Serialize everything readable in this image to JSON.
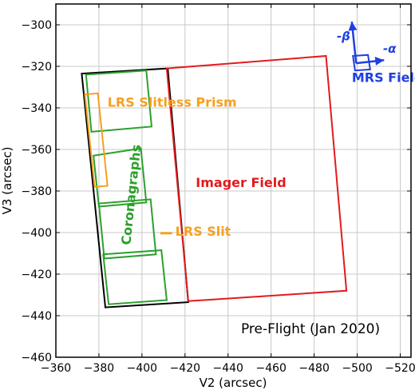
{
  "chart_data": {
    "type": "line",
    "xlabel": "V2 (arcsec)",
    "ylabel": "V3 (arcsec)",
    "xlim": [
      -360,
      -525
    ],
    "ylim": [
      -460,
      -290
    ],
    "x_ticks": [
      -360,
      -380,
      -400,
      -420,
      -440,
      -460,
      -480,
      -500,
      -520
    ],
    "y_ticks": [
      -300,
      -320,
      -340,
      -360,
      -380,
      -400,
      -420,
      -440,
      -460
    ],
    "x_tick_labels": [
      "−360",
      "−380",
      "−400",
      "−420",
      "−440",
      "−460",
      "−480",
      "−500",
      "−520"
    ],
    "y_tick_labels": [
      "−300",
      "−320",
      "−340",
      "−360",
      "−380",
      "−400",
      "−420",
      "−440",
      "−460"
    ],
    "grid": true,
    "colors": {
      "black": "#000000",
      "red": "#e31a1c",
      "green": "#2ca02c",
      "orange": "#f5a020",
      "blue": "#1f3fe0",
      "grid": "#c8c8c8"
    },
    "shapes": [
      {
        "name": "outer-outline",
        "color": "#000000",
        "points": [
          [
            -372,
            -323.5
          ],
          [
            -412,
            -321
          ],
          [
            -421.5,
            -433.5
          ],
          [
            -383,
            -436
          ]
        ]
      },
      {
        "name": "imager-field",
        "color": "#e31a1c",
        "points": [
          [
            -411.5,
            -321
          ],
          [
            -485.5,
            -315
          ],
          [
            -495,
            -428
          ],
          [
            -421.5,
            -433
          ]
        ]
      },
      {
        "name": "coronagraph-1",
        "color": "#2ca02c",
        "points": [
          [
            -374,
            -324
          ],
          [
            -402,
            -322
          ],
          [
            -404.5,
            -349
          ],
          [
            -376.5,
            -351.5
          ]
        ]
      },
      {
        "name": "coronagraph-2",
        "color": "#2ca02c",
        "points": [
          [
            -377.5,
            -363
          ],
          [
            -399.5,
            -359.5
          ],
          [
            -402,
            -385.5
          ],
          [
            -380,
            -387.5
          ]
        ]
      },
      {
        "name": "coronagraph-3",
        "color": "#2ca02c",
        "points": [
          [
            -380,
            -386
          ],
          [
            -404,
            -384
          ],
          [
            -406.5,
            -410.5
          ],
          [
            -382.5,
            -412.5
          ]
        ]
      },
      {
        "name": "coronagraph-4",
        "color": "#2ca02c",
        "points": [
          [
            -382,
            -410.5
          ],
          [
            -409,
            -408.5
          ],
          [
            -411.5,
            -432.5
          ],
          [
            -384.5,
            -434.5
          ]
        ]
      },
      {
        "name": "lrs-slitless-prism",
        "color": "#f5a020",
        "points": [
          [
            -373.5,
            -333.5
          ],
          [
            -379.5,
            -333
          ],
          [
            -384,
            -377.5
          ],
          [
            -378,
            -378
          ]
        ]
      },
      {
        "name": "mrs-field",
        "color": "#1f3fe0",
        "points": [
          [
            -498,
            -315
          ],
          [
            -505,
            -314.5
          ],
          [
            -506,
            -321.5
          ],
          [
            -499,
            -322
          ]
        ]
      }
    ],
    "lrs_slit": {
      "color": "#f5a020",
      "points": [
        [
          -408.5,
          -400.3
        ],
        [
          -414,
          -400.3
        ]
      ]
    },
    "mrs_axes": {
      "origin": [
        -499.5,
        -318.5
      ],
      "beta_tip": [
        -497.5,
        -298.5
      ],
      "alpha_tip": [
        -512.5,
        -317
      ]
    },
    "annotations": [
      {
        "name": "lrs-slitless-prism-label",
        "text": "LRS Slitless Prism",
        "x": -384,
        "y": -339.5,
        "color": "#f5a020",
        "rotate": 0
      },
      {
        "name": "coronagraphs-label",
        "text": "Coronagraphs",
        "x": -397,
        "y": -382,
        "color": "#2ca02c",
        "rotate": -84
      },
      {
        "name": "imager-field-label",
        "text": "Imager Field",
        "x": -425,
        "y": -378,
        "color": "#e31a1c",
        "rotate": 0
      },
      {
        "name": "lrs-slit-label",
        "text": "LRS Slit",
        "x": -415.5,
        "y": -401.5,
        "color": "#f5a020",
        "rotate": 0
      },
      {
        "name": "mrs-field-label",
        "text": "MRS Field",
        "x": -497.5,
        "y": -327.5,
        "color": "#1f3fe0",
        "rotate": 0
      },
      {
        "name": "beta-label",
        "text": "-β",
        "x": -490.5,
        "y": -307.5,
        "color": "#1f3fe0",
        "rotate": 0
      },
      {
        "name": "alpha-label",
        "text": "-α",
        "x": -512,
        "y": -313.5,
        "color": "#1f3fe0",
        "rotate": 0
      },
      {
        "name": "pre-flight-label",
        "text": "Pre-Flight (Jan 2020)",
        "x": -446,
        "y": -448.5,
        "color": "#000000",
        "rotate": 0
      }
    ]
  }
}
